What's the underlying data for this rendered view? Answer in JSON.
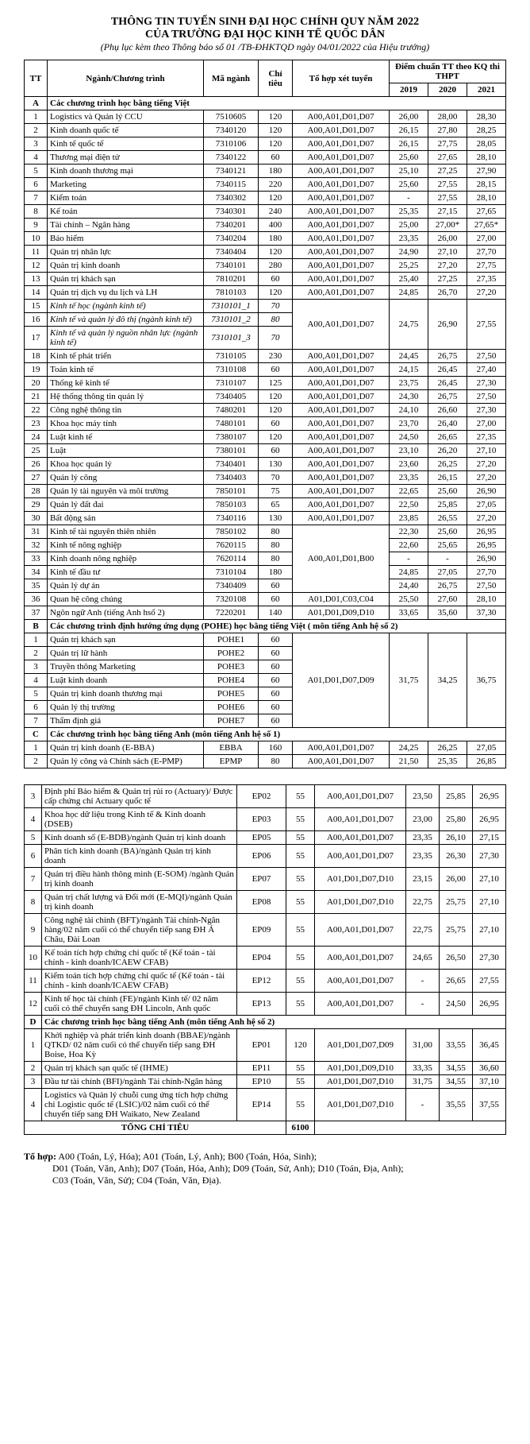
{
  "header": {
    "line1": "THÔNG TIN TUYỂN SINH ĐẠI HỌC CHÍNH QUY NĂM 2022",
    "line2": "CỦA TRƯỜNG ĐẠI HỌC KINH TẾ QUỐC DÂN",
    "line3_pre": "(Phụ lục kèm theo Thông báo số ",
    "line3_num": "01",
    "line3_post": " /TB-ĐHKTQD ngày 04/01/2022 của Hiệu trưởng)"
  },
  "cols": {
    "tt": "TT",
    "prog": "Ngành/Chương trình",
    "code": "Mã ngành",
    "quota": "Chỉ tiêu",
    "combo": "Tổ hợp xét tuyển",
    "score_group": "Điểm chuẩn TT theo KQ thi THPT",
    "y19": "2019",
    "y20": "2020",
    "y21": "2021"
  },
  "sections": {
    "A": "Các chương trình học bằng tiếng Việt",
    "B": "Các chương trình định hướng ứng dụng (POHE) học bằng tiếng Việt ( môn tiếng Anh hệ số 2)",
    "C": "Các chương trình học bằng tiếng Anh (môn tiếng Anh hệ số 1)",
    "D": "Các chương trình học bằng tiếng Anh (môn tiếng Anh hệ số 2)"
  },
  "rowsA": [
    {
      "tt": "1",
      "name": "Logistics và Quản lý CCU",
      "code": "7510605",
      "quota": "120",
      "combo": "A00,A01,D01,D07",
      "s19": "26,00",
      "s20": "28,00",
      "s21": "28,30"
    },
    {
      "tt": "2",
      "name": "Kinh doanh quốc tế",
      "code": "7340120",
      "quota": "120",
      "combo": "A00,A01,D01,D07",
      "s19": "26,15",
      "s20": "27,80",
      "s21": "28,25"
    },
    {
      "tt": "3",
      "name": "Kinh tế quốc tế",
      "code": "7310106",
      "quota": "120",
      "combo": "A00,A01,D01,D07",
      "s19": "26,15",
      "s20": "27,75",
      "s21": "28,05"
    },
    {
      "tt": "4",
      "name": "Thương mại điện tử",
      "code": "7340122",
      "quota": "60",
      "combo": "A00,A01,D01,D07",
      "s19": "25,60",
      "s20": "27,65",
      "s21": "28,10"
    },
    {
      "tt": "5",
      "name": "Kinh doanh thương mại",
      "code": "7340121",
      "quota": "180",
      "combo": "A00,A01,D01,D07",
      "s19": "25,10",
      "s20": "27,25",
      "s21": "27,90"
    },
    {
      "tt": "6",
      "name": "Marketing",
      "code": "7340115",
      "quota": "220",
      "combo": "A00,A01,D01,D07",
      "s19": "25,60",
      "s20": "27,55",
      "s21": "28,15"
    },
    {
      "tt": "7",
      "name": "Kiểm toán",
      "code": "7340302",
      "quota": "120",
      "combo": "A00,A01,D01,D07",
      "s19": "-",
      "s20": "27,55",
      "s21": "28,10"
    },
    {
      "tt": "8",
      "name": "Kế toán",
      "code": "7340301",
      "quota": "240",
      "combo": "A00,A01,D01,D07",
      "s19": "25,35",
      "s20": "27,15",
      "s21": "27,65"
    },
    {
      "tt": "9",
      "name": "Tài chính – Ngân hàng",
      "code": "7340201",
      "quota": "400",
      "combo": "A00,A01,D01,D07",
      "s19": "25,00",
      "s20": "27,00*",
      "s21": "27,65*"
    },
    {
      "tt": "10",
      "name": "Bảo hiểm",
      "code": "7340204",
      "quota": "180",
      "combo": "A00,A01,D01,D07",
      "s19": "23,35",
      "s20": "26,00",
      "s21": "27,00"
    },
    {
      "tt": "11",
      "name": "Quản trị nhân lực",
      "code": "7340404",
      "quota": "120",
      "combo": "A00,A01,D01,D07",
      "s19": "24,90",
      "s20": "27,10",
      "s21": "27,70"
    },
    {
      "tt": "12",
      "name": "Quản trị kinh doanh",
      "code": "7340101",
      "quota": "280",
      "combo": "A00,A01,D01,D07",
      "s19": "25,25",
      "s20": "27,20",
      "s21": "27,75"
    },
    {
      "tt": "13",
      "name": "Quản trị khách sạn",
      "code": "7810201",
      "quota": "60",
      "combo": "A00,A01,D01,D07",
      "s19": "25,40",
      "s20": "27,25",
      "s21": "27,35"
    },
    {
      "tt": "14",
      "name": "Quản trị dịch vụ du lịch và LH",
      "code": "7810103",
      "quota": "120",
      "combo": "A00,A01,D01,D07",
      "s19": "24,85",
      "s20": "26,70",
      "s21": "27,20"
    }
  ],
  "rowsA_span1": [
    {
      "tt": "15",
      "name": "Kinh tế học (ngành kinh tế)",
      "code": "7310101_1",
      "quota": "70",
      "italic": true
    },
    {
      "tt": "16",
      "name": "Kinh tế và quản lý đô thị (ngành kinh tế)",
      "code": "7310101_2",
      "quota": "80",
      "italic": true
    },
    {
      "tt": "17",
      "name": "Kinh tế và quản lý nguồn nhân lực (ngành kinh tế)",
      "code": "7310101_3",
      "quota": "70",
      "italic": true
    }
  ],
  "rowsA_span1_shared": {
    "combo": "A00,A01,D01,D07",
    "s19": "24,75",
    "s20": "26,90",
    "s21": "27,55"
  },
  "rowsA2": [
    {
      "tt": "18",
      "name": "Kinh tế phát triển",
      "code": "7310105",
      "quota": "230",
      "combo": "A00,A01,D01,D07",
      "s19": "24,45",
      "s20": "26,75",
      "s21": "27,50"
    },
    {
      "tt": "19",
      "name": "Toán kinh tế",
      "code": "7310108",
      "quota": "60",
      "combo": "A00,A01,D01,D07",
      "s19": "24,15",
      "s20": "26,45",
      "s21": "27,40"
    },
    {
      "tt": "20",
      "name": "Thống kê kinh tế",
      "code": "7310107",
      "quota": "125",
      "combo": "A00,A01,D01,D07",
      "s19": "23,75",
      "s20": "26,45",
      "s21": "27,30"
    },
    {
      "tt": "21",
      "name": "Hệ thống thông tin quản lý",
      "code": "7340405",
      "quota": "120",
      "combo": "A00,A01,D01,D07",
      "s19": "24,30",
      "s20": "26,75",
      "s21": "27,50"
    },
    {
      "tt": "22",
      "name": "Công nghệ thông tin",
      "code": "7480201",
      "quota": "120",
      "combo": "A00,A01,D01,D07",
      "s19": "24,10",
      "s20": "26,60",
      "s21": "27,30"
    },
    {
      "tt": "23",
      "name": "Khoa học máy tính",
      "code": "7480101",
      "quota": "60",
      "combo": "A00,A01,D01,D07",
      "s19": "23,70",
      "s20": "26,40",
      "s21": "27,00"
    },
    {
      "tt": "24",
      "name": "Luật kinh tế",
      "code": "7380107",
      "quota": "120",
      "combo": "A00,A01,D01,D07",
      "s19": "24,50",
      "s20": "26,65",
      "s21": "27,35"
    },
    {
      "tt": "25",
      "name": "Luật",
      "code": "7380101",
      "quota": "60",
      "combo": "A00,A01,D01,D07",
      "s19": "23,10",
      "s20": "26,20",
      "s21": "27,10"
    },
    {
      "tt": "26",
      "name": "Khoa học quản lý",
      "code": "7340401",
      "quota": "130",
      "combo": "A00,A01,D01,D07",
      "s19": "23,60",
      "s20": "26,25",
      "s21": "27,20"
    },
    {
      "tt": "27",
      "name": "Quản lý công",
      "code": "7340403",
      "quota": "70",
      "combo": "A00,A01,D01,D07",
      "s19": "23,35",
      "s20": "26,15",
      "s21": "27,20"
    },
    {
      "tt": "28",
      "name": "Quản lý tài nguyên và môi trường",
      "code": "7850101",
      "quota": "75",
      "combo": "A00,A01,D01,D07",
      "s19": "22,65",
      "s20": "25,60",
      "s21": "26,90"
    },
    {
      "tt": "29",
      "name": "Quản lý đất đai",
      "code": "7850103",
      "quota": "65",
      "combo": "A00,A01,D01,D07",
      "s19": "22,50",
      "s20": "25,85",
      "s21": "27,05"
    },
    {
      "tt": "30",
      "name": "Bất động sản",
      "code": "7340116",
      "quota": "130",
      "combo": "A00,A01,D01,D07",
      "s19": "23,85",
      "s20": "26,55",
      "s21": "27,20"
    }
  ],
  "rowsA_span2": [
    {
      "tt": "31",
      "name": "Kinh tế tài nguyên thiên nhiên",
      "code": "7850102",
      "quota": "80",
      "s19": "22,30",
      "s20": "25,60",
      "s21": "26,95"
    },
    {
      "tt": "32",
      "name": "Kinh tế nông nghiệp",
      "code": "7620115",
      "quota": "80",
      "s19": "22,60",
      "s20": "25,65",
      "s21": "26,95"
    },
    {
      "tt": "33",
      "name": "Kinh doanh nông nghiệp",
      "code": "7620114",
      "quota": "80",
      "s19": "-",
      "s20": "-",
      "s21": "26,90"
    },
    {
      "tt": "34",
      "name": "Kinh tế đầu tư",
      "code": "7310104",
      "quota": "180",
      "s19": "24,85",
      "s20": "27,05",
      "s21": "27,70"
    },
    {
      "tt": "35",
      "name": "Quản lý dự án",
      "code": "7340409",
      "quota": "60",
      "s19": "24,40",
      "s20": "26,75",
      "s21": "27,50"
    }
  ],
  "rowsA_span2_combo": "A00,A01,D01,B00",
  "rowsA3": [
    {
      "tt": "36",
      "name": "Quan hệ công chúng",
      "code": "7320108",
      "quota": "60",
      "combo": "A01,D01,C03,C04",
      "s19": "25,50",
      "s20": "27,60",
      "s21": "28,10"
    },
    {
      "tt": "37",
      "name": "Ngôn ngữ Anh (tiếng Anh hsố 2)",
      "code": "7220201",
      "quota": "140",
      "combo": "A01,D01,D09,D10",
      "s19": "33,65",
      "s20": "35,60",
      "s21": "37,30"
    }
  ],
  "rowsB": [
    {
      "tt": "1",
      "name": "Quản trị khách sạn",
      "code": "POHE1",
      "quota": "60"
    },
    {
      "tt": "2",
      "name": "Quản trị lữ hành",
      "code": "POHE2",
      "quota": "60"
    },
    {
      "tt": "3",
      "name": "Truyền thông Marketing",
      "code": "POHE3",
      "quota": "60"
    },
    {
      "tt": "4",
      "name": "Luật kinh doanh",
      "code": "POHE4",
      "quota": "60"
    },
    {
      "tt": "5",
      "name": "Quản trị kinh doanh thương mại",
      "code": "POHE5",
      "quota": "60"
    },
    {
      "tt": "6",
      "name": "Quản lý thị trường",
      "code": "POHE6",
      "quota": "60"
    },
    {
      "tt": "7",
      "name": "Thẩm định giá",
      "code": "POHE7",
      "quota": "60"
    }
  ],
  "rowsB_shared": {
    "combo": "A01,D01,D07,D09",
    "s19": "31,75",
    "s20": "34,25",
    "s21": "36,75"
  },
  "rowsC": [
    {
      "tt": "1",
      "name": "Quản trị kinh doanh (E-BBA)",
      "code": "EBBA",
      "quota": "160",
      "combo": "A00,A01,D01,D07",
      "s19": "24,25",
      "s20": "26,25",
      "s21": "27,05"
    },
    {
      "tt": "2",
      "name": "Quản lý công và Chính sách (E-PMP)",
      "code": "EPMP",
      "quota": "80",
      "combo": "A00,A01,D01,D07",
      "s19": "21,50",
      "s20": "25,35",
      "s21": "26,85"
    }
  ],
  "rowsC2": [
    {
      "tt": "3",
      "name": "Định phí Bảo hiểm & Quản trị rủi ro (Actuary)/ Được cấp chứng chỉ Actuary quốc tế",
      "code": "EP02",
      "quota": "55",
      "combo": "A00,A01,D01,D07",
      "s19": "23,50",
      "s20": "25,85",
      "s21": "26,95"
    },
    {
      "tt": "4",
      "name": "Khoa học dữ liệu trong Kinh tế & Kinh doanh (DSEB)",
      "code": "EP03",
      "quota": "55",
      "combo": "A00,A01,D01,D07",
      "s19": "23,00",
      "s20": "25,80",
      "s21": "26,95"
    },
    {
      "tt": "5",
      "name": "Kinh doanh số (E-BDB)/ngành Quản trị kinh doanh",
      "code": "EP05",
      "quota": "55",
      "combo": "A00,A01,D01,D07",
      "s19": "23,35",
      "s20": "26,10",
      "s21": "27,15"
    },
    {
      "tt": "6",
      "name": "Phân tích kinh doanh (BA)/ngành Quản trị kinh doanh",
      "code": "EP06",
      "quota": "55",
      "combo": "A00,A01,D01,D07",
      "s19": "23,35",
      "s20": "26,30",
      "s21": "27,30"
    },
    {
      "tt": "7",
      "name": "Quản trị điều hành thông minh (E-SOM) /ngành Quản trị kinh doanh",
      "code": "EP07",
      "quota": "55",
      "combo": "A01,D01,D07,D10",
      "s19": "23,15",
      "s20": "26,00",
      "s21": "27,10"
    },
    {
      "tt": "8",
      "name": "Quản trị chất lượng và Đổi mới (E-MQI)/ngành Quản trị kinh doanh",
      "code": "EP08",
      "quota": "55",
      "combo": "A01,D01,D07,D10",
      "s19": "22,75",
      "s20": "25,75",
      "s21": "27,10"
    },
    {
      "tt": "9",
      "name": "Công nghệ tài chính (BFT)/ngành Tài chính-Ngân hàng/02 năm cuối có thể chuyển tiếp sang ĐH Á Châu, Đài Loan",
      "code": "EP09",
      "quota": "55",
      "combo": "A00,A01,D01,D07",
      "s19": "22,75",
      "s20": "25,75",
      "s21": "27,10"
    },
    {
      "tt": "10",
      "name": "Kế toán tích hợp chứng chỉ quốc tế (Kế toán - tài chính - kinh doanh/ICAEW CFAB)",
      "code": "EP04",
      "quota": "55",
      "combo": "A00,A01,D01,D07",
      "s19": "24,65",
      "s20": "26,50",
      "s21": "27,30"
    },
    {
      "tt": "11",
      "name": "Kiểm toán tích hợp chứng chỉ quốc tế (Kế toán - tài chính - kinh doanh/ICAEW CFAB)",
      "code": "EP12",
      "quota": "55",
      "combo": "A00,A01,D01,D07",
      "s19": "-",
      "s20": "26,65",
      "s21": "27,55"
    },
    {
      "tt": "12",
      "name": "Kinh tế học tài chính (FE)/ngành Kinh tế/ 02 năm cuối có thể chuyển sang ĐH Lincoln, Anh quốc",
      "code": "EP13",
      "quota": "55",
      "combo": "A00,A01,D01,D07",
      "s19": "-",
      "s20": "24,50",
      "s21": "26,95"
    }
  ],
  "rowsD": [
    {
      "tt": "1",
      "name": "Khởi nghiệp và phát triển kinh doanh (BBAE)/ngành QTKD/ 02 năm cuối có thể chuyển tiếp sang ĐH Boise, Hoa Kỳ",
      "code": "EP01",
      "quota": "120",
      "combo": "A01,D01,D07,D09",
      "s19": "31,00",
      "s20": "33,55",
      "s21": "36,45"
    },
    {
      "tt": "2",
      "name": "Quản trị khách sạn quốc tế (IHME)",
      "code": "EP11",
      "quota": "55",
      "combo": "A01,D01,D09,D10",
      "s19": "33,35",
      "s20": "34,55",
      "s21": "36,60"
    },
    {
      "tt": "3",
      "name": "Đầu tư tài chính (BFI)/ngành Tài chính-Ngân hàng",
      "code": "EP10",
      "quota": "55",
      "combo": "A01,D01,D07,D10",
      "s19": "31,75",
      "s20": "34,55",
      "s21": "37,10"
    },
    {
      "tt": "4",
      "name": "Logistics và Quản lý chuỗi cung ứng tích hợp chứng chỉ Logistic quốc tế (LSIC)/02 năm cuối có thể chuyển tiếp sang ĐH Waikato, New Zealand",
      "code": "EP14",
      "quota": "55",
      "combo": "A01,D01,D07,D10",
      "s19": "-",
      "s20": "35,55",
      "s21": "37,55"
    }
  ],
  "total_label": "TỔNG CHỈ TIÊU",
  "total_value": "6100",
  "footnote_label": "Tổ hợp:",
  "footnote_text": "A00 (Toán, Lý, Hóa); A01 (Toán, Lý, Anh); B00 (Toán, Hóa, Sinh);\nD01 (Toán, Văn, Anh); D07 (Toán, Hóa, Anh); D09 (Toán, Sử, Anh); D10 (Toán, Địa, Anh);\nC03 (Toán, Văn, Sử); C04 (Toán, Văn, Địa)."
}
